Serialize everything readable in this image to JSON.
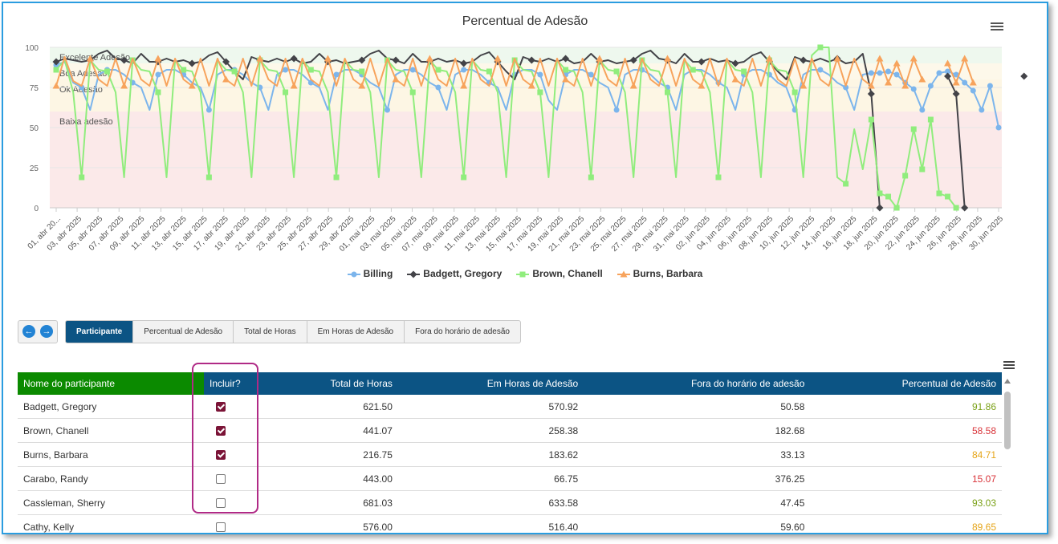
{
  "chart": {
    "title": "Percentual de Adesão",
    "menu_icon": "hamburger-icon",
    "bands": [
      {
        "label": "Excelente Adesão",
        "from": 90,
        "to": 100,
        "color": "#eef8ee"
      },
      {
        "label": "Boa Adesão",
        "from": 80,
        "to": 90,
        "color": "#fdf8ea"
      },
      {
        "label": "Ok Adesão",
        "from": 60,
        "to": 80,
        "color": "#fdf6e4"
      },
      {
        "label": "Baixa adesão",
        "from": 0,
        "to": 60,
        "color": "#fbe9e9"
      }
    ]
  },
  "chart_data": {
    "type": "line",
    "title": "Percentual de Adesão",
    "ylim": [
      0,
      100
    ],
    "yticks": [
      0,
      25,
      50,
      75,
      100
    ],
    "x_labels": [
      "01, abr 20...",
      "03, abr 2025",
      "05, abr 2025",
      "07, abr 2025",
      "09, abr 2025",
      "11, abr 2025",
      "13, abr 2025",
      "15, abr 2025",
      "17, abr 2025",
      "19, abr 2025",
      "21, abr 2025",
      "23, abr 2025",
      "25, abr 2025",
      "27, abr 2025",
      "29, abr 2025",
      "01, mai 2025",
      "03, mai 2025",
      "05, mai 2025",
      "07, mai 2025",
      "09, mai 2025",
      "11, mai 2025",
      "13, mai 2025",
      "15, mai 2025",
      "17, mai 2025",
      "19, mai 2025",
      "21, mai 2025",
      "23, mai 2025",
      "25, mai 2025",
      "27, mai 2025",
      "29, mai 2025",
      "31, mai 2025",
      "02, jun 2025",
      "04, jun 2025",
      "06, jun 2025",
      "08, jun 2025",
      "10, jun 2025",
      "12, jun 2025",
      "14, jun 2025",
      "16, jun 2025",
      "18, jun 2025",
      "20, jun 2025",
      "22, jun 2025",
      "24, jun 2025",
      "26, jun 2025",
      "28, jun 2025",
      "30, jun 2025"
    ],
    "legend_position": "bottom",
    "grid": true,
    "series": [
      {
        "name": "Billing",
        "color": "#7cb5ec",
        "marker": "circle",
        "values": [
          89,
          91,
          78,
          75,
          61,
          83,
          86,
          86,
          83,
          78,
          75,
          61,
          83,
          86,
          86,
          83,
          78,
          75,
          61,
          83,
          86,
          86,
          83,
          78,
          75,
          61,
          83,
          86,
          86,
          83,
          78,
          75,
          61,
          83,
          86,
          86,
          83,
          78,
          75,
          61,
          83,
          86,
          86,
          83,
          78,
          75,
          61,
          83,
          86,
          86,
          83,
          78,
          75,
          61,
          83,
          86,
          86,
          83,
          67,
          61,
          83,
          86,
          86,
          83,
          78,
          75,
          61,
          83,
          86,
          86,
          83,
          78,
          75,
          61,
          83,
          86,
          86,
          83,
          78,
          75,
          61,
          83,
          86,
          86,
          83,
          78,
          75,
          61,
          83,
          86,
          86,
          83,
          78,
          75,
          61,
          83,
          84,
          84,
          85,
          83,
          78,
          74,
          61,
          76,
          84,
          85,
          83,
          78,
          73,
          61,
          76,
          50
        ]
      },
      {
        "name": "Badgett, Gregory",
        "color": "#434348",
        "marker": "diamond",
        "values": [
          91,
          93,
          92,
          91,
          92,
          96,
          98,
          93,
          92,
          90,
          96,
          91,
          91,
          93,
          91,
          92,
          90,
          91,
          95,
          97,
          91,
          85,
          80,
          94,
          92,
          91,
          93,
          91,
          93,
          90,
          91,
          96,
          91,
          92,
          90,
          91,
          92,
          96,
          98,
          93,
          92,
          90,
          96,
          91,
          91,
          93,
          91,
          92,
          90,
          91,
          95,
          97,
          91,
          85,
          80,
          94,
          92,
          91,
          93,
          91,
          93,
          90,
          91,
          96,
          91,
          92,
          90,
          91,
          92,
          96,
          98,
          93,
          92,
          90,
          96,
          91,
          91,
          93,
          91,
          92,
          90,
          91,
          95,
          97,
          91,
          85,
          80,
          94,
          92,
          91,
          93,
          91,
          93,
          90,
          91,
          96,
          71,
          0,
          null,
          null,
          null,
          null,
          null,
          null,
          null,
          82,
          71,
          0,
          null,
          null,
          null,
          null,
          null,
          null,
          82,
          null
        ]
      },
      {
        "name": "Brown, Chanell",
        "color": "#90ed7d",
        "marker": "square",
        "values": [
          86,
          92,
          72,
          19,
          92,
          86,
          85,
          72,
          19,
          92,
          86,
          85,
          72,
          19,
          92,
          86,
          85,
          72,
          19,
          92,
          86,
          85,
          72,
          19,
          92,
          86,
          85,
          72,
          19,
          92,
          86,
          85,
          72,
          19,
          92,
          86,
          85,
          72,
          19,
          92,
          86,
          85,
          72,
          19,
          92,
          86,
          85,
          72,
          19,
          92,
          86,
          85,
          72,
          19,
          92,
          86,
          85,
          72,
          19,
          92,
          86,
          85,
          72,
          19,
          92,
          86,
          85,
          72,
          19,
          92,
          86,
          85,
          72,
          19,
          92,
          86,
          85,
          72,
          19,
          92,
          86,
          85,
          72,
          19,
          92,
          86,
          85,
          72,
          19,
          95,
          100,
          100,
          19,
          15,
          49,
          24,
          55,
          9,
          7,
          0,
          20,
          49,
          24,
          55,
          9,
          7,
          0,
          null,
          null,
          null
        ]
      },
      {
        "name": "Burns, Barbara",
        "color": "#f7a35c",
        "marker": "triangle",
        "values": [
          76,
          94,
          79,
          76,
          93,
          80,
          76,
          93,
          76,
          93,
          80,
          76,
          93,
          76,
          93,
          80,
          76,
          93,
          76,
          93,
          80,
          76,
          93,
          76,
          93,
          80,
          76,
          93,
          76,
          93,
          80,
          76,
          93,
          76,
          93,
          80,
          76,
          93,
          76,
          93,
          80,
          76,
          93,
          76,
          93,
          80,
          76,
          93,
          76,
          93,
          80,
          76,
          93,
          76,
          93,
          80,
          76,
          93,
          76,
          93,
          80,
          76,
          93,
          76,
          93,
          80,
          76,
          93,
          76,
          93,
          80,
          76,
          93,
          76,
          93,
          80,
          76,
          93,
          76,
          93,
          80,
          76,
          93,
          76,
          93,
          80,
          76,
          93,
          76,
          93,
          80,
          76,
          93,
          76,
          93,
          80,
          76,
          93,
          78,
          90,
          76,
          93,
          80,
          null,
          null,
          90,
          78,
          93,
          78,
          null,
          null,
          null
        ]
      }
    ]
  },
  "nav": {
    "prev_icon": "arrow-left-icon",
    "next_icon": "arrow-right-icon"
  },
  "tabs": [
    {
      "label": "Participante",
      "active": true
    },
    {
      "label": "Percentual de Adesão",
      "active": false
    },
    {
      "label": "Total de Horas",
      "active": false
    },
    {
      "label": "Em Horas de Adesão",
      "active": false
    },
    {
      "label": "Fora do horário de adesão",
      "active": false
    }
  ],
  "table": {
    "menu_icon": "hamburger-icon",
    "headers": {
      "name": "Nome do participante",
      "include": "Incluir?",
      "total": "Total de Horas",
      "in_hours": "Em Horas de Adesão",
      "out_hours": "Fora do horário de adesão",
      "percent": "Percentual de Adesão"
    },
    "rows": [
      {
        "name": "Badgett, Gregory",
        "include": true,
        "total": "621.50",
        "in_hours": "570.92",
        "out_hours": "50.58",
        "percent": "91.86",
        "status_color": "#7aa117"
      },
      {
        "name": "Brown, Chanell",
        "include": true,
        "total": "441.07",
        "in_hours": "258.38",
        "out_hours": "182.68",
        "percent": "58.58",
        "status_color": "#d9343a"
      },
      {
        "name": "Burns, Barbara",
        "include": true,
        "total": "216.75",
        "in_hours": "183.62",
        "out_hours": "33.13",
        "percent": "84.71",
        "status_color": "#e5a519"
      },
      {
        "name": "Carabo, Randy",
        "include": false,
        "total": "443.00",
        "in_hours": "66.75",
        "out_hours": "376.25",
        "percent": "15.07",
        "status_color": "#d9343a"
      },
      {
        "name": "Cassleman, Sherry",
        "include": false,
        "total": "681.03",
        "in_hours": "633.58",
        "out_hours": "47.45",
        "percent": "93.03",
        "status_color": "#7aa117"
      },
      {
        "name": "Cathy, Kelly",
        "include": false,
        "total": "576.00",
        "in_hours": "516.40",
        "out_hours": "59.60",
        "percent": "89.65",
        "status_color": "#e5a519"
      }
    ]
  }
}
